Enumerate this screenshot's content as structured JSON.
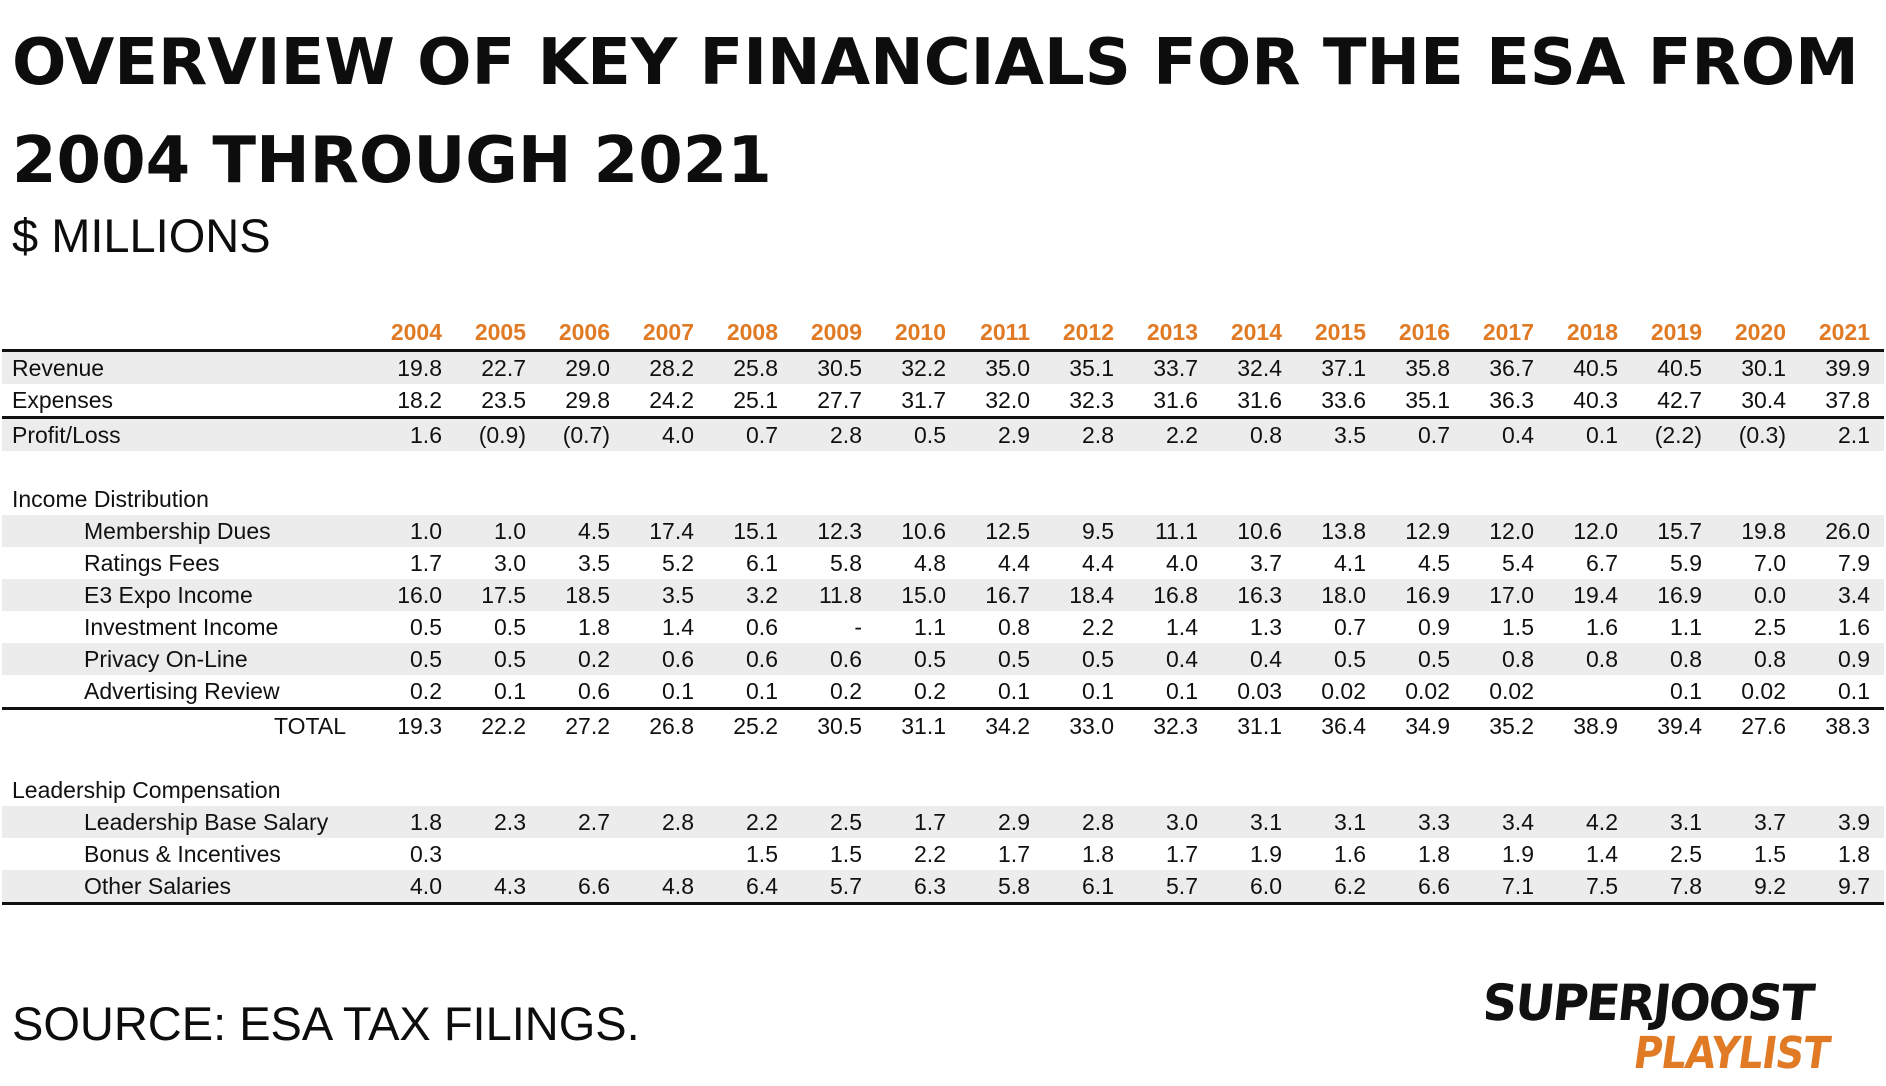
{
  "title": "OVERVIEW OF KEY FINANCIALS FOR THE ESA FROM 2004 THROUGH 2021",
  "subtitle": "$ MILLIONS",
  "source": "SOURCE: ESA TAX FILINGS.",
  "logo": {
    "line1": "SUPERJOOST",
    "line2": "PLAYLIST",
    "accent_color": "#e07a24"
  },
  "colors": {
    "year_header": "#e07a24",
    "row_shade": "#ececec",
    "rule": "#111111"
  },
  "chart_data": {
    "type": "table",
    "title": "OVERVIEW OF KEY FINANCIALS FOR THE ESA FROM 2004 THROUGH 2021",
    "subtitle": "$ MILLIONS",
    "years": [
      "2004",
      "2005",
      "2006",
      "2007",
      "2008",
      "2009",
      "2010",
      "2011",
      "2012",
      "2013",
      "2014",
      "2015",
      "2016",
      "2017",
      "2018",
      "2019",
      "2020",
      "2021"
    ],
    "rows": [
      {
        "label": "Revenue",
        "kind": "data",
        "shaded": true,
        "indent": false,
        "values": [
          "19.8",
          "22.7",
          "29.0",
          "28.2",
          "25.8",
          "30.5",
          "32.2",
          "35.0",
          "35.1",
          "33.7",
          "32.4",
          "37.1",
          "35.8",
          "36.7",
          "40.5",
          "40.5",
          "30.1",
          "39.9"
        ]
      },
      {
        "label": "Expenses",
        "kind": "data",
        "shaded": false,
        "indent": false,
        "line_bottom": true,
        "values": [
          "18.2",
          "23.5",
          "29.8",
          "24.2",
          "25.1",
          "27.7",
          "31.7",
          "32.0",
          "32.3",
          "31.6",
          "31.6",
          "33.6",
          "35.1",
          "36.3",
          "40.3",
          "42.7",
          "30.4",
          "37.8"
        ]
      },
      {
        "label": "Profit/Loss",
        "kind": "data",
        "shaded": true,
        "indent": false,
        "values": [
          "1.6",
          "(0.9)",
          "(0.7)",
          "4.0",
          "0.7",
          "2.8",
          "0.5",
          "2.9",
          "2.8",
          "2.2",
          "0.8",
          "3.5",
          "0.7",
          "0.4",
          "0.1",
          "(2.2)",
          "(0.3)",
          "2.1"
        ]
      },
      {
        "label": "",
        "kind": "spacer"
      },
      {
        "label": "Income Distribution",
        "kind": "section"
      },
      {
        "label": "Membership Dues",
        "kind": "data",
        "shaded": true,
        "indent": true,
        "values": [
          "1.0",
          "1.0",
          "4.5",
          "17.4",
          "15.1",
          "12.3",
          "10.6",
          "12.5",
          "9.5",
          "11.1",
          "10.6",
          "13.8",
          "12.9",
          "12.0",
          "12.0",
          "15.7",
          "19.8",
          "26.0"
        ]
      },
      {
        "label": "Ratings Fees",
        "kind": "data",
        "shaded": false,
        "indent": true,
        "values": [
          "1.7",
          "3.0",
          "3.5",
          "5.2",
          "6.1",
          "5.8",
          "4.8",
          "4.4",
          "4.4",
          "4.0",
          "3.7",
          "4.1",
          "4.5",
          "5.4",
          "6.7",
          "5.9",
          "7.0",
          "7.9"
        ]
      },
      {
        "label": "E3 Expo Income",
        "kind": "data",
        "shaded": true,
        "indent": true,
        "values": [
          "16.0",
          "17.5",
          "18.5",
          "3.5",
          "3.2",
          "11.8",
          "15.0",
          "16.7",
          "18.4",
          "16.8",
          "16.3",
          "18.0",
          "16.9",
          "17.0",
          "19.4",
          "16.9",
          "0.0",
          "3.4"
        ]
      },
      {
        "label": "Investment Income",
        "kind": "data",
        "shaded": false,
        "indent": true,
        "values": [
          "0.5",
          "0.5",
          "1.8",
          "1.4",
          "0.6",
          "-",
          "1.1",
          "0.8",
          "2.2",
          "1.4",
          "1.3",
          "0.7",
          "0.9",
          "1.5",
          "1.6",
          "1.1",
          "2.5",
          "1.6"
        ]
      },
      {
        "label": "Privacy On-Line",
        "kind": "data",
        "shaded": true,
        "indent": true,
        "values": [
          "0.5",
          "0.5",
          "0.2",
          "0.6",
          "0.6",
          "0.6",
          "0.5",
          "0.5",
          "0.5",
          "0.4",
          "0.4",
          "0.5",
          "0.5",
          "0.8",
          "0.8",
          "0.8",
          "0.8",
          "0.9"
        ]
      },
      {
        "label": "Advertising Review",
        "kind": "data",
        "shaded": false,
        "indent": true,
        "line_bottom": true,
        "values": [
          "0.2",
          "0.1",
          "0.6",
          "0.1",
          "0.1",
          "0.2",
          "0.2",
          "0.1",
          "0.1",
          "0.1",
          "0.03",
          "0.02",
          "0.02",
          "0.02",
          "",
          "0.1",
          "0.02",
          "0.1"
        ]
      },
      {
        "label": "TOTAL",
        "kind": "total",
        "shaded": false,
        "values": [
          "19.3",
          "22.2",
          "27.2",
          "26.8",
          "25.2",
          "30.5",
          "31.1",
          "34.2",
          "33.0",
          "32.3",
          "31.1",
          "36.4",
          "34.9",
          "35.2",
          "38.9",
          "39.4",
          "27.6",
          "38.3"
        ]
      },
      {
        "label": "",
        "kind": "spacer"
      },
      {
        "label": "Leadership Compensation",
        "kind": "section"
      },
      {
        "label": "Leadership Base Salary",
        "kind": "data",
        "shaded": true,
        "indent": true,
        "values": [
          "1.8",
          "2.3",
          "2.7",
          "2.8",
          "2.2",
          "2.5",
          "1.7",
          "2.9",
          "2.8",
          "3.0",
          "3.1",
          "3.1",
          "3.3",
          "3.4",
          "4.2",
          "3.1",
          "3.7",
          "3.9"
        ]
      },
      {
        "label": "Bonus & Incentives",
        "kind": "data",
        "shaded": false,
        "indent": true,
        "values": [
          "0.3",
          "",
          "",
          "",
          "1.5",
          "1.5",
          "2.2",
          "1.7",
          "1.8",
          "1.7",
          "1.9",
          "1.6",
          "1.8",
          "1.9",
          "1.4",
          "2.5",
          "1.5",
          "1.8"
        ]
      },
      {
        "label": "Other Salaries",
        "kind": "data",
        "shaded": true,
        "indent": true,
        "line_bottom": true,
        "values": [
          "4.0",
          "4.3",
          "6.6",
          "4.8",
          "6.4",
          "5.7",
          "6.3",
          "5.8",
          "6.1",
          "5.7",
          "6.0",
          "6.2",
          "6.6",
          "7.1",
          "7.5",
          "7.8",
          "9.2",
          "9.7"
        ]
      }
    ]
  }
}
